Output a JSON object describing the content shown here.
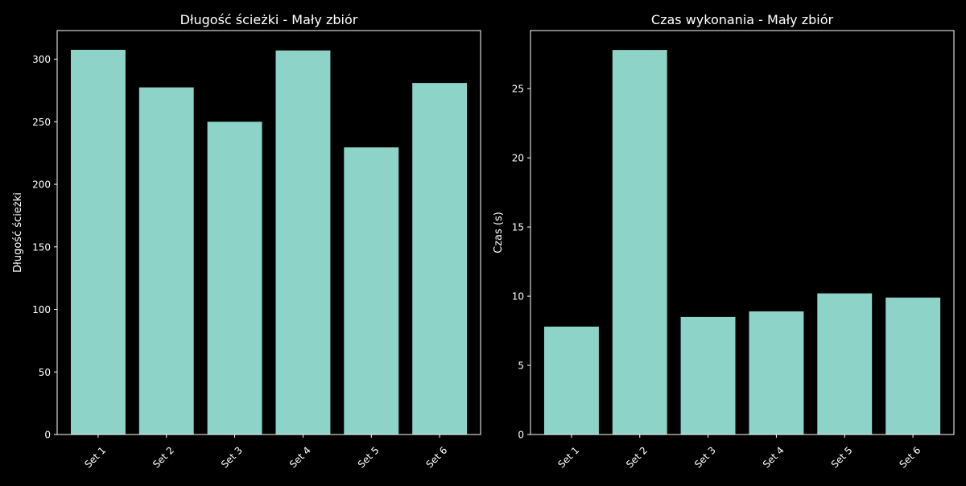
{
  "colors": {
    "background": "#000000",
    "bar": "#8dd3c7",
    "foreground": "#ffffff"
  },
  "chart_data": [
    {
      "type": "bar",
      "title": "Długość ścieżki - Mały zbiór",
      "xlabel": "",
      "ylabel": "Długość ścieżki",
      "categories": [
        "Set 1",
        "Set 2",
        "Set 3",
        "Set 4",
        "Set 5",
        "Set 6"
      ],
      "values": [
        307.5,
        277.5,
        250.0,
        307.0,
        229.5,
        281.0
      ],
      "ylim": [
        0,
        322.9
      ],
      "yticks": [
        0,
        50,
        100,
        150,
        200,
        250,
        300
      ],
      "grid": false,
      "legend": "none"
    },
    {
      "type": "bar",
      "title": "Czas wykonania - Mały zbiór",
      "xlabel": "",
      "ylabel": "Czas (s)",
      "categories": [
        "Set 1",
        "Set 2",
        "Set 3",
        "Set 4",
        "Set 5",
        "Set 6"
      ],
      "values": [
        7.8,
        27.8,
        8.5,
        8.9,
        10.2,
        9.9
      ],
      "ylim": [
        0,
        29.2
      ],
      "yticks": [
        0,
        5,
        10,
        15,
        20,
        25
      ],
      "grid": false,
      "legend": "none"
    }
  ]
}
